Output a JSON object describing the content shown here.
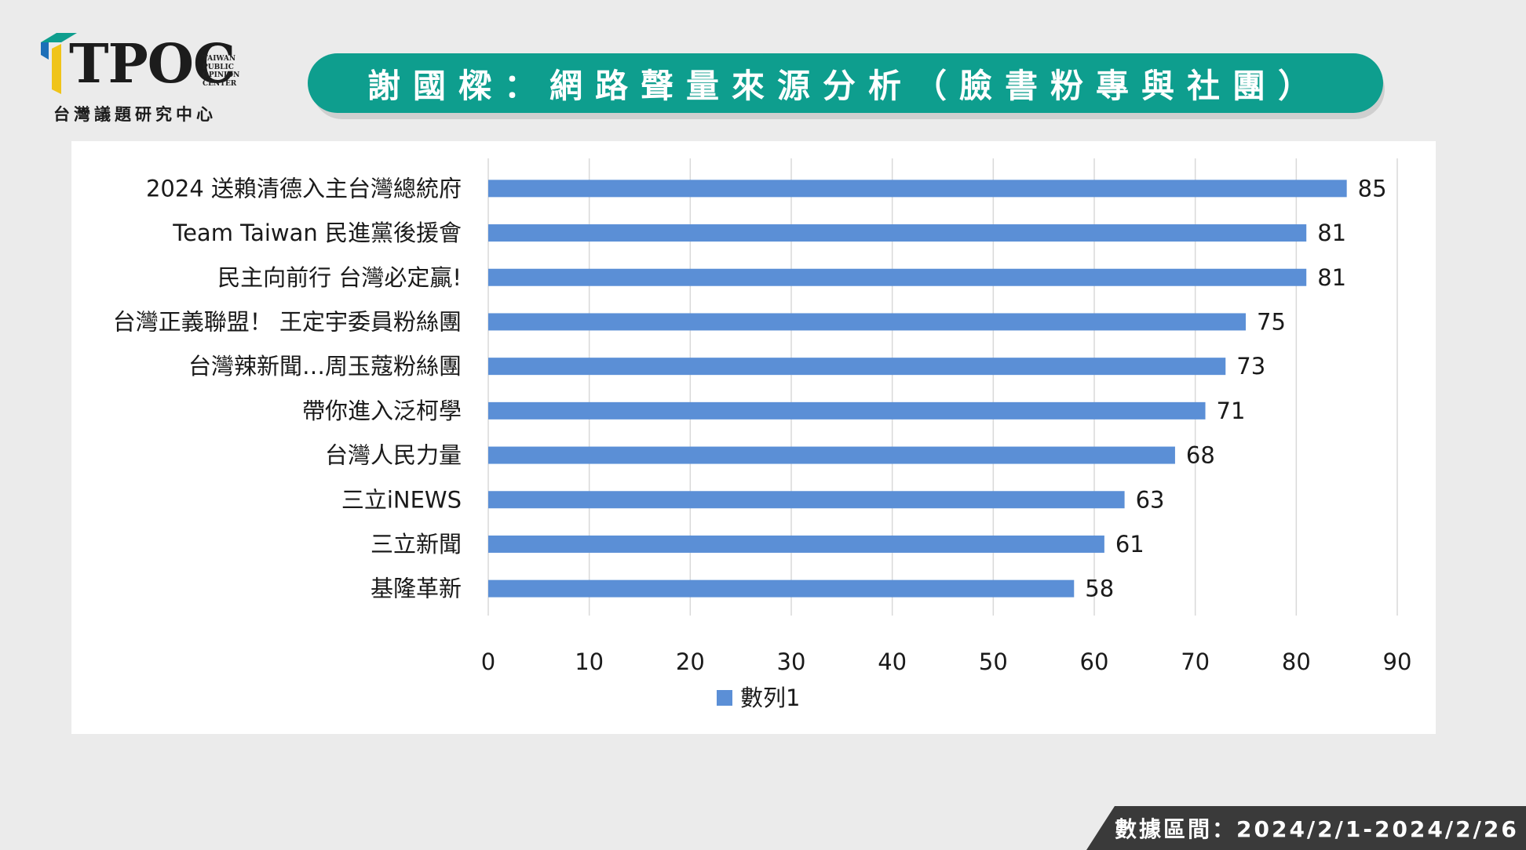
{
  "logo": {
    "name": "TPOC",
    "side_lines": [
      "TAIWAN",
      "PUBLIC",
      "OPINION",
      "CENTER"
    ],
    "chinese": "台灣議題研究中心"
  },
  "title": "謝國樑：網路聲量來源分析（臉書粉專與社團）",
  "footer": "數據區間：2024/2/1-2024/2/26",
  "colors": {
    "bar": "#5b8fd6",
    "title_bg": "#0e9e8e",
    "footer_bg": "#3a3a3a"
  },
  "chart_data": {
    "type": "bar",
    "orientation": "horizontal",
    "categories": [
      "2024 送賴清德入主台灣總統府",
      "Team Taiwan 民進黨後援會",
      "民主向前行 台灣必定贏!",
      "台灣正義聯盟！ 王定宇委員粉絲團",
      "台灣辣新聞…周玉蔻粉絲團",
      "帶你進入泛柯學",
      "台灣人民力量",
      "三立iNEWS",
      "三立新聞",
      "基隆革新"
    ],
    "series": [
      {
        "name": "數列1",
        "values": [
          85,
          81,
          81,
          75,
          73,
          71,
          68,
          63,
          61,
          58
        ]
      }
    ],
    "xlim": [
      0,
      90
    ],
    "xticks": [
      0,
      10,
      20,
      30,
      40,
      50,
      60,
      70,
      80,
      90
    ],
    "grid": true,
    "legend": "bottom"
  }
}
